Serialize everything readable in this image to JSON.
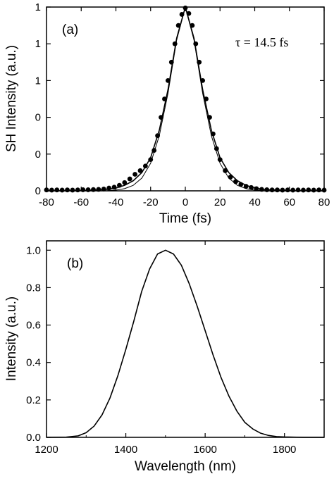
{
  "chart_data": [
    {
      "type": "line",
      "panel_label": "(a)",
      "annotation": "τ = 14.5 fs",
      "xlabel": "Time (fs)",
      "ylabel": "SH Intensity (a.u.)",
      "xlim": [
        -80,
        80
      ],
      "ylim": [
        0,
        1.0
      ],
      "x_ticks": [
        "-80",
        "-60",
        "-40",
        "-20",
        "0",
        "20",
        "40",
        "60",
        "80"
      ],
      "y_ticks": [
        "0",
        "0",
        "0",
        "1",
        "1",
        "1"
      ],
      "grid": false,
      "series": [
        {
          "style": "markers",
          "x": [
            -80,
            -77,
            -74,
            -71,
            -68,
            -65,
            -62,
            -59,
            -56,
            -53,
            -50,
            -47,
            -44,
            -41,
            -38,
            -35,
            -32,
            -29,
            -26,
            -23,
            -20,
            -18,
            -16,
            -14,
            -12,
            -10,
            -8,
            -6,
            -4,
            -2,
            0,
            2,
            4,
            6,
            8,
            10,
            12,
            14,
            16,
            18,
            20,
            23,
            26,
            29,
            32,
            35,
            38,
            41,
            44,
            47,
            50,
            53,
            56,
            59,
            62,
            65,
            68,
            71,
            74,
            77,
            80
          ],
          "y": [
            0.005,
            0.004,
            0.005,
            0.004,
            0.005,
            0.004,
            0.005,
            0.006,
            0.006,
            0.007,
            0.008,
            0.01,
            0.015,
            0.02,
            0.03,
            0.045,
            0.065,
            0.09,
            0.11,
            0.135,
            0.17,
            0.22,
            0.3,
            0.4,
            0.5,
            0.6,
            0.7,
            0.8,
            0.9,
            0.96,
            0.995,
            0.965,
            0.9,
            0.8,
            0.7,
            0.6,
            0.5,
            0.4,
            0.31,
            0.23,
            0.17,
            0.11,
            0.075,
            0.05,
            0.035,
            0.025,
            0.018,
            0.012,
            0.008,
            0.006,
            0.005,
            0.005,
            0.004,
            0.005,
            0.004,
            0.005,
            0.004,
            0.005,
            0.004,
            0.005,
            0.004
          ]
        },
        {
          "style": "line",
          "x": [
            -80,
            -60,
            -45,
            -40,
            -35,
            -30,
            -25,
            -20,
            -15,
            -10,
            -5,
            0,
            5,
            10,
            15,
            20,
            25,
            30,
            35,
            40,
            45,
            60,
            80
          ],
          "y": [
            0,
            0.001,
            0.008,
            0.015,
            0.03,
            0.055,
            0.1,
            0.18,
            0.33,
            0.55,
            0.83,
            1.0,
            0.83,
            0.55,
            0.33,
            0.18,
            0.1,
            0.055,
            0.03,
            0.015,
            0.008,
            0.001,
            0
          ]
        },
        {
          "style": "line",
          "x": [
            -80,
            -60,
            -45,
            -40,
            -35,
            -30,
            -25,
            -20,
            -15,
            -10,
            -5,
            0,
            5,
            10,
            15,
            20,
            25,
            30,
            35,
            40,
            45,
            60,
            80
          ],
          "y": [
            0,
            0,
            0.001,
            0.004,
            0.012,
            0.03,
            0.07,
            0.15,
            0.3,
            0.53,
            0.82,
            1.0,
            0.82,
            0.53,
            0.3,
            0.15,
            0.07,
            0.03,
            0.012,
            0.004,
            0.001,
            0,
            0
          ]
        }
      ]
    },
    {
      "type": "line",
      "panel_label": "(b)",
      "xlabel": "Wavelength (nm)",
      "ylabel": "Intensity (a.u.)",
      "xlim": [
        1200,
        1900
      ],
      "ylim": [
        0,
        1.05
      ],
      "x_ticks": [
        "1200",
        "1400",
        "1600",
        "1800"
      ],
      "y_ticks": [
        "0.0",
        "0.2",
        "0.4",
        "0.6",
        "0.8",
        "1.0"
      ],
      "grid": false,
      "series": [
        {
          "style": "line",
          "x": [
            1200,
            1250,
            1280,
            1300,
            1320,
            1340,
            1360,
            1380,
            1400,
            1420,
            1440,
            1460,
            1480,
            1500,
            1520,
            1540,
            1560,
            1580,
            1600,
            1620,
            1640,
            1660,
            1680,
            1700,
            1720,
            1740,
            1760,
            1780,
            1800,
            1850,
            1900
          ],
          "y": [
            0,
            0.001,
            0.008,
            0.025,
            0.06,
            0.12,
            0.21,
            0.33,
            0.47,
            0.62,
            0.78,
            0.9,
            0.98,
            1.0,
            0.98,
            0.92,
            0.82,
            0.7,
            0.57,
            0.44,
            0.32,
            0.22,
            0.14,
            0.08,
            0.045,
            0.022,
            0.01,
            0.004,
            0.002,
            0.0,
            0.0
          ]
        }
      ]
    }
  ]
}
